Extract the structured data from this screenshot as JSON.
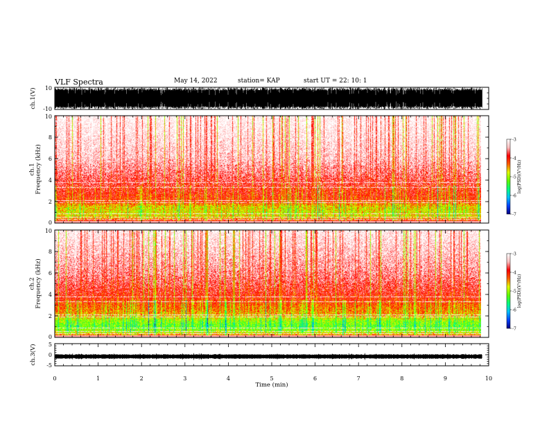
{
  "header": {
    "title": "VLF Spectra",
    "date": "May 14, 2022",
    "station": "station= KAP",
    "start": "start  UT  =   22: 10: 1"
  },
  "chart_data": [
    {
      "type": "line",
      "panel": "waveform-ch1",
      "ylabel": "ch.1(V)",
      "ylim": [
        -10,
        10
      ],
      "yticks": [
        "10",
        "-10"
      ],
      "xlim": [
        0,
        10
      ]
    },
    {
      "type": "heatmap",
      "panel": "spectrogram-ch1",
      "ylabel": "ch.1\nFrequency  (kHz)",
      "ylabel_line1": "ch.1",
      "ylabel_line2": "Frequency  (kHz)",
      "ylim": [
        0,
        10
      ],
      "yticks": [
        "0",
        "2",
        "4",
        "6",
        "8",
        "10"
      ],
      "xlim": [
        0,
        9.85
      ],
      "colorbar": {
        "label": "log(PSD)(V²/Hz)",
        "range": [
          -7,
          -3
        ],
        "ticks": [
          "-3",
          "-4",
          "-5",
          "-6",
          "-7"
        ],
        "colors": [
          "#000080",
          "#0040ff",
          "#00c0ff",
          "#00ff80",
          "#60ff00",
          "#e0ff00",
          "#ff6000",
          "#ff0000",
          "#ffc0c0",
          "#ffffff"
        ]
      },
      "spectral_profile": [
        {
          "f": 0.0,
          "log_psd": -3.6
        },
        {
          "f": 0.5,
          "log_psd": -4.6
        },
        {
          "f": 1.0,
          "log_psd": -4.7
        },
        {
          "f": 1.5,
          "log_psd": -4.6
        },
        {
          "f": 2.0,
          "log_psd": -4.1
        },
        {
          "f": 3.0,
          "log_psd": -3.9
        },
        {
          "f": 4.0,
          "log_psd": -3.7
        },
        {
          "f": 6.0,
          "log_psd": -3.3
        },
        {
          "f": 10.0,
          "log_psd": -3.0
        }
      ]
    },
    {
      "type": "heatmap",
      "panel": "spectrogram-ch2",
      "ylabel": "ch.2\nFrequency  (kHz)",
      "ylabel_line1": "ch.2",
      "ylabel_line2": "Frequency  (kHz)",
      "ylim": [
        0,
        10
      ],
      "yticks": [
        "0",
        "2",
        "4",
        "6",
        "8",
        "10"
      ],
      "xlim": [
        0,
        9.85
      ],
      "colorbar": {
        "label": "log(PSD)(V²/Hz)",
        "range": [
          -7,
          -3
        ],
        "ticks": [
          "-3",
          "-4",
          "-5",
          "-6",
          "-7"
        ],
        "colors": [
          "#000080",
          "#0040ff",
          "#00c0ff",
          "#00ff80",
          "#60ff00",
          "#e0ff00",
          "#ff6000",
          "#ff0000",
          "#ffc0c0",
          "#ffffff"
        ]
      },
      "spectral_profile": [
        {
          "f": 0.0,
          "log_psd": -4.0
        },
        {
          "f": 0.5,
          "log_psd": -4.9
        },
        {
          "f": 1.0,
          "log_psd": -5.2
        },
        {
          "f": 1.5,
          "log_psd": -5.0
        },
        {
          "f": 2.0,
          "log_psd": -4.5
        },
        {
          "f": 3.0,
          "log_psd": -4.2
        },
        {
          "f": 4.0,
          "log_psd": -3.9
        },
        {
          "f": 6.0,
          "log_psd": -3.5
        },
        {
          "f": 10.0,
          "log_psd": -3.1
        }
      ]
    },
    {
      "type": "line",
      "panel": "waveform-ch3",
      "ylabel": "ch.3(V)",
      "ylim": [
        -5,
        5
      ],
      "yticks": [
        "5",
        "0",
        "-5"
      ],
      "xlabel": "Time  (min)",
      "xlim": [
        0,
        10
      ],
      "xticks": [
        "0",
        "1",
        "2",
        "3",
        "4",
        "5",
        "6",
        "7",
        "8",
        "9",
        "10"
      ],
      "baseline": -0.8
    }
  ]
}
